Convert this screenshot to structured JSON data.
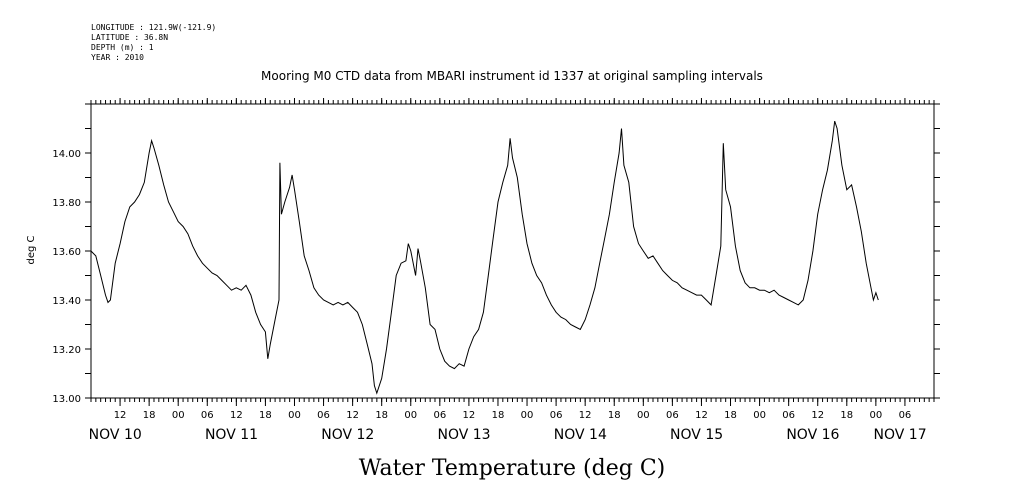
{
  "header": {
    "longitude": "LONGITUDE : 121.9W(-121.9)",
    "latitude": "LATITUDE : 36.8N",
    "depth": "DEPTH (m) : 1",
    "year": "YEAR : 2010"
  },
  "chart_data": {
    "type": "line",
    "title": "Mooring M0 CTD data from MBARI instrument id 1337 at original sampling intervals",
    "xlabel": "Water Temperature (deg C)",
    "ylabel": "deg C",
    "ylim": [
      13.0,
      14.2
    ],
    "xlim_hours": [
      0,
      174
    ],
    "y_ticks": [
      "13.00",
      "13.20",
      "13.40",
      "13.60",
      "13.80",
      "14.00"
    ],
    "x_hour_ticks": [
      {
        "hour": 6,
        "label": "12"
      },
      {
        "hour": 12,
        "label": "18"
      },
      {
        "hour": 18,
        "label": "00"
      },
      {
        "hour": 24,
        "label": "06"
      },
      {
        "hour": 30,
        "label": "12"
      },
      {
        "hour": 36,
        "label": "18"
      },
      {
        "hour": 42,
        "label": "00"
      },
      {
        "hour": 48,
        "label": "06"
      },
      {
        "hour": 54,
        "label": "12"
      },
      {
        "hour": 60,
        "label": "18"
      },
      {
        "hour": 66,
        "label": "00"
      },
      {
        "hour": 72,
        "label": "06"
      },
      {
        "hour": 78,
        "label": "12"
      },
      {
        "hour": 84,
        "label": "18"
      },
      {
        "hour": 90,
        "label": "00"
      },
      {
        "hour": 96,
        "label": "06"
      },
      {
        "hour": 102,
        "label": "12"
      },
      {
        "hour": 108,
        "label": "18"
      },
      {
        "hour": 114,
        "label": "00"
      },
      {
        "hour": 120,
        "label": "06"
      },
      {
        "hour": 126,
        "label": "12"
      },
      {
        "hour": 132,
        "label": "18"
      },
      {
        "hour": 138,
        "label": "00"
      },
      {
        "hour": 144,
        "label": "06"
      },
      {
        "hour": 150,
        "label": "12"
      },
      {
        "hour": 156,
        "label": "18"
      },
      {
        "hour": 162,
        "label": "00"
      },
      {
        "hour": 168,
        "label": "06"
      }
    ],
    "date_labels": [
      {
        "hour": 5,
        "label": "NOV 10"
      },
      {
        "hour": 29,
        "label": "NOV 11"
      },
      {
        "hour": 53,
        "label": "NOV 12"
      },
      {
        "hour": 77,
        "label": "NOV 13"
      },
      {
        "hour": 101,
        "label": "NOV 14"
      },
      {
        "hour": 125,
        "label": "NOV 15"
      },
      {
        "hour": 149,
        "label": "NOV 16"
      },
      {
        "hour": 167,
        "label": "NOV 17"
      }
    ],
    "series": [
      {
        "points": [
          [
            0.0,
            13.6
          ],
          [
            1.0,
            13.58
          ],
          [
            2.0,
            13.5
          ],
          [
            3.0,
            13.42
          ],
          [
            3.5,
            13.39
          ],
          [
            4.0,
            13.4
          ],
          [
            5.0,
            13.55
          ],
          [
            6.0,
            13.63
          ],
          [
            7.0,
            13.72
          ],
          [
            8.0,
            13.78
          ],
          [
            9.0,
            13.8
          ],
          [
            10.0,
            13.83
          ],
          [
            11.0,
            13.88
          ],
          [
            12.0,
            14.0
          ],
          [
            12.5,
            14.05
          ],
          [
            13.0,
            14.02
          ],
          [
            14.0,
            13.95
          ],
          [
            15.0,
            13.87
          ],
          [
            16.0,
            13.8
          ],
          [
            17.0,
            13.76
          ],
          [
            18.0,
            13.72
          ],
          [
            19.0,
            13.7
          ],
          [
            20.0,
            13.67
          ],
          [
            21.0,
            13.62
          ],
          [
            22.0,
            13.58
          ],
          [
            23.0,
            13.55
          ],
          [
            24.0,
            13.53
          ],
          [
            25.0,
            13.51
          ],
          [
            26.0,
            13.5
          ],
          [
            27.0,
            13.48
          ],
          [
            28.0,
            13.46
          ],
          [
            29.0,
            13.44
          ],
          [
            30.0,
            13.45
          ],
          [
            31.0,
            13.44
          ],
          [
            32.0,
            13.46
          ],
          [
            33.0,
            13.42
          ],
          [
            34.0,
            13.35
          ],
          [
            35.0,
            13.3
          ],
          [
            36.0,
            13.27
          ],
          [
            36.5,
            13.16
          ],
          [
            37.0,
            13.22
          ],
          [
            38.0,
            13.32
          ],
          [
            38.8,
            13.4
          ],
          [
            39.0,
            13.96
          ],
          [
            39.3,
            13.75
          ],
          [
            40.0,
            13.8
          ],
          [
            41.0,
            13.86
          ],
          [
            41.5,
            13.91
          ],
          [
            42.0,
            13.85
          ],
          [
            43.0,
            13.72
          ],
          [
            44.0,
            13.58
          ],
          [
            45.0,
            13.52
          ],
          [
            46.0,
            13.45
          ],
          [
            47.0,
            13.42
          ],
          [
            48.0,
            13.4
          ],
          [
            49.0,
            13.39
          ],
          [
            50.0,
            13.38
          ],
          [
            51.0,
            13.39
          ],
          [
            52.0,
            13.38
          ],
          [
            53.0,
            13.39
          ],
          [
            54.0,
            13.37
          ],
          [
            55.0,
            13.35
          ],
          [
            56.0,
            13.3
          ],
          [
            57.0,
            13.22
          ],
          [
            58.0,
            13.14
          ],
          [
            58.5,
            13.05
          ],
          [
            59.0,
            13.02
          ],
          [
            60.0,
            13.08
          ],
          [
            61.0,
            13.2
          ],
          [
            62.0,
            13.35
          ],
          [
            63.0,
            13.5
          ],
          [
            64.0,
            13.55
          ],
          [
            65.0,
            13.56
          ],
          [
            65.5,
            13.63
          ],
          [
            66.0,
            13.6
          ],
          [
            67.0,
            13.5
          ],
          [
            67.5,
            13.61
          ],
          [
            68.0,
            13.56
          ],
          [
            69.0,
            13.45
          ],
          [
            70.0,
            13.3
          ],
          [
            71.0,
            13.28
          ],
          [
            72.0,
            13.2
          ],
          [
            73.0,
            13.15
          ],
          [
            74.0,
            13.13
          ],
          [
            75.0,
            13.12
          ],
          [
            76.0,
            13.14
          ],
          [
            77.0,
            13.13
          ],
          [
            78.0,
            13.2
          ],
          [
            79.0,
            13.25
          ],
          [
            80.0,
            13.28
          ],
          [
            81.0,
            13.35
          ],
          [
            82.0,
            13.5
          ],
          [
            83.0,
            13.65
          ],
          [
            84.0,
            13.8
          ],
          [
            85.0,
            13.88
          ],
          [
            86.0,
            13.95
          ],
          [
            86.5,
            14.06
          ],
          [
            87.0,
            13.98
          ],
          [
            88.0,
            13.9
          ],
          [
            89.0,
            13.75
          ],
          [
            90.0,
            13.63
          ],
          [
            91.0,
            13.55
          ],
          [
            92.0,
            13.5
          ],
          [
            93.0,
            13.47
          ],
          [
            94.0,
            13.42
          ],
          [
            95.0,
            13.38
          ],
          [
            96.0,
            13.35
          ],
          [
            97.0,
            13.33
          ],
          [
            98.0,
            13.32
          ],
          [
            99.0,
            13.3
          ],
          [
            100.0,
            13.29
          ],
          [
            101.0,
            13.28
          ],
          [
            102.0,
            13.32
          ],
          [
            103.0,
            13.38
          ],
          [
            104.0,
            13.45
          ],
          [
            105.0,
            13.55
          ],
          [
            106.0,
            13.65
          ],
          [
            107.0,
            13.75
          ],
          [
            108.0,
            13.88
          ],
          [
            109.0,
            14.0
          ],
          [
            109.5,
            14.1
          ],
          [
            110.0,
            13.95
          ],
          [
            111.0,
            13.88
          ],
          [
            112.0,
            13.7
          ],
          [
            113.0,
            13.63
          ],
          [
            114.0,
            13.6
          ],
          [
            115.0,
            13.57
          ],
          [
            116.0,
            13.58
          ],
          [
            117.0,
            13.55
          ],
          [
            118.0,
            13.52
          ],
          [
            119.0,
            13.5
          ],
          [
            120.0,
            13.48
          ],
          [
            121.0,
            13.47
          ],
          [
            122.0,
            13.45
          ],
          [
            123.0,
            13.44
          ],
          [
            124.0,
            13.43
          ],
          [
            125.0,
            13.42
          ],
          [
            126.0,
            13.42
          ],
          [
            127.0,
            13.4
          ],
          [
            128.0,
            13.38
          ],
          [
            129.0,
            13.5
          ],
          [
            130.0,
            13.62
          ],
          [
            130.5,
            14.04
          ],
          [
            131.0,
            13.85
          ],
          [
            132.0,
            13.78
          ],
          [
            133.0,
            13.62
          ],
          [
            134.0,
            13.52
          ],
          [
            135.0,
            13.47
          ],
          [
            136.0,
            13.45
          ],
          [
            137.0,
            13.45
          ],
          [
            138.0,
            13.44
          ],
          [
            139.0,
            13.44
          ],
          [
            140.0,
            13.43
          ],
          [
            141.0,
            13.44
          ],
          [
            142.0,
            13.42
          ],
          [
            143.0,
            13.41
          ],
          [
            144.0,
            13.4
          ],
          [
            145.0,
            13.39
          ],
          [
            146.0,
            13.38
          ],
          [
            147.0,
            13.4
          ],
          [
            148.0,
            13.48
          ],
          [
            149.0,
            13.6
          ],
          [
            150.0,
            13.75
          ],
          [
            151.0,
            13.85
          ],
          [
            152.0,
            13.93
          ],
          [
            153.0,
            14.05
          ],
          [
            153.5,
            14.13
          ],
          [
            154.0,
            14.1
          ],
          [
            155.0,
            13.95
          ],
          [
            156.0,
            13.85
          ],
          [
            157.0,
            13.87
          ],
          [
            158.0,
            13.78
          ],
          [
            159.0,
            13.68
          ],
          [
            160.0,
            13.55
          ],
          [
            161.0,
            13.45
          ],
          [
            161.5,
            13.4
          ],
          [
            162.0,
            13.43
          ],
          [
            162.5,
            13.4
          ]
        ]
      }
    ]
  }
}
